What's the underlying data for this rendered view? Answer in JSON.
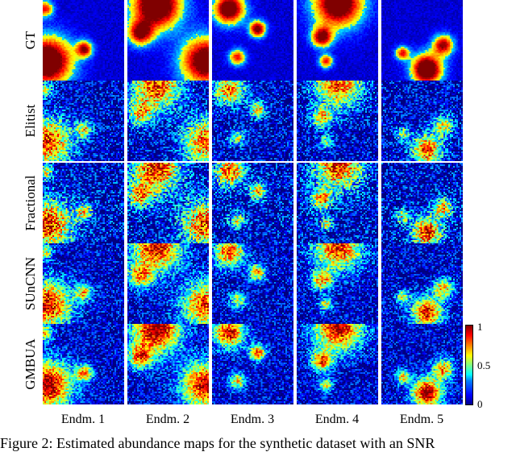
{
  "figure": {
    "row_labels": [
      "GT",
      "Elitist",
      "Fractional",
      "SUnCNN",
      "GMBUA"
    ],
    "col_labels": [
      "Endm. 1",
      "Endm. 2",
      "Endm. 3",
      "Endm. 4",
      "Endm. 5"
    ],
    "colorbar": {
      "ticks": [
        "1",
        "0.5",
        "0"
      ],
      "range": [
        0,
        1
      ],
      "colormap": "jet"
    },
    "caption": "Figure 2: Estimated abundance maps for the synthetic dataset with an SNR"
  }
}
